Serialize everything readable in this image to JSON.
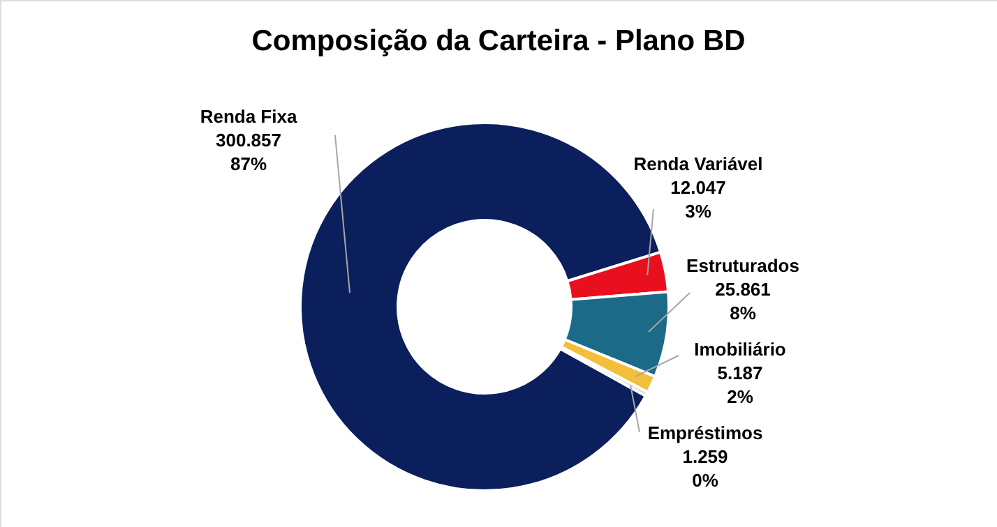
{
  "chart_data": {
    "type": "donut",
    "title": "Composição da Carteira - Plano BD",
    "categories": [
      "Renda Fixa",
      "Renda Variável",
      "Estruturados",
      "Imobiliário",
      "Empréstimos"
    ],
    "values": [
      300857,
      12047,
      25861,
      5187,
      1259
    ],
    "value_labels": [
      "300.857\n87%",
      "12.047\n3%",
      "25.861\n8%",
      "5.187\n2%",
      "1.259\n0%"
    ],
    "colors": [
      "#0b1f5c",
      "#e8101f",
      "#1b6a88",
      "#f2bf3a",
      "#d9d9d9"
    ],
    "legend": false
  }
}
